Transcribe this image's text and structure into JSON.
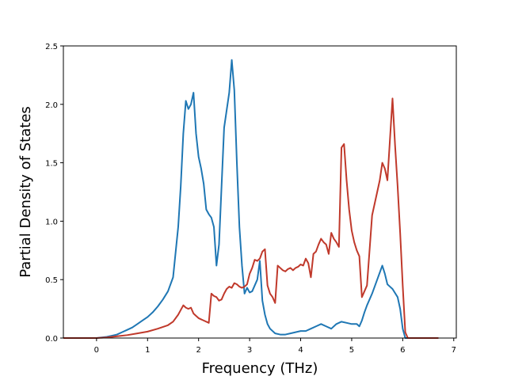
{
  "chart_data": {
    "type": "line",
    "title": "",
    "xlabel": "Frequency (THz)",
    "ylabel": "Partial Density of States",
    "xlim": [
      -0.65,
      7.05
    ],
    "ylim": [
      0,
      2.5
    ],
    "xticks": [
      0,
      1,
      2,
      3,
      4,
      5,
      6,
      7
    ],
    "yticks": [
      0.0,
      0.5,
      1.0,
      1.5,
      2.0,
      2.5
    ],
    "xtick_labels": [
      "0",
      "1",
      "2",
      "3",
      "4",
      "5",
      "6",
      "7"
    ],
    "ytick_labels": [
      "0.0",
      "0.5",
      "1.0",
      "1.5",
      "2.0",
      "2.5"
    ],
    "grid": false,
    "legend": "none",
    "series": [
      {
        "color": "#1f77b4",
        "x": [
          -0.65,
          0.0,
          0.1,
          0.2,
          0.3,
          0.4,
          0.5,
          0.6,
          0.7,
          0.8,
          0.9,
          1.0,
          1.1,
          1.2,
          1.3,
          1.4,
          1.5,
          1.6,
          1.65,
          1.7,
          1.75,
          1.8,
          1.85,
          1.9,
          1.95,
          2.0,
          2.05,
          2.1,
          2.15,
          2.2,
          2.25,
          2.3,
          2.35,
          2.4,
          2.45,
          2.5,
          2.55,
          2.6,
          2.65,
          2.7,
          2.75,
          2.8,
          2.85,
          2.9,
          2.95,
          3.0,
          3.05,
          3.1,
          3.15,
          3.2,
          3.25,
          3.3,
          3.35,
          3.4,
          3.5,
          3.6,
          3.7,
          3.8,
          3.9,
          4.0,
          4.1,
          4.2,
          4.3,
          4.4,
          4.5,
          4.6,
          4.7,
          4.8,
          4.9,
          5.0,
          5.1,
          5.15,
          5.2,
          5.25,
          5.3,
          5.4,
          5.5,
          5.6,
          5.65,
          5.7,
          5.75,
          5.8,
          5.9,
          5.95,
          6.0,
          6.05,
          6.1,
          6.2,
          6.7
        ],
        "y": [
          0.0,
          0.0,
          0.005,
          0.01,
          0.02,
          0.03,
          0.05,
          0.07,
          0.09,
          0.12,
          0.15,
          0.18,
          0.22,
          0.27,
          0.33,
          0.4,
          0.52,
          0.95,
          1.3,
          1.75,
          2.03,
          1.96,
          2.0,
          2.1,
          1.75,
          1.55,
          1.45,
          1.32,
          1.1,
          1.06,
          1.03,
          0.95,
          0.62,
          0.8,
          1.3,
          1.8,
          1.95,
          2.1,
          2.38,
          2.12,
          1.5,
          0.95,
          0.62,
          0.38,
          0.43,
          0.39,
          0.4,
          0.45,
          0.5,
          0.66,
          0.32,
          0.2,
          0.12,
          0.08,
          0.04,
          0.03,
          0.03,
          0.04,
          0.05,
          0.06,
          0.06,
          0.08,
          0.1,
          0.12,
          0.1,
          0.08,
          0.12,
          0.14,
          0.13,
          0.12,
          0.12,
          0.1,
          0.15,
          0.22,
          0.28,
          0.38,
          0.5,
          0.62,
          0.55,
          0.46,
          0.44,
          0.42,
          0.35,
          0.25,
          0.08,
          0.0,
          0.0,
          0.0,
          0.0
        ]
      },
      {
        "color": "#c0392b",
        "x": [
          -0.65,
          0.0,
          0.2,
          0.4,
          0.6,
          0.8,
          1.0,
          1.2,
          1.4,
          1.5,
          1.6,
          1.65,
          1.7,
          1.75,
          1.8,
          1.85,
          1.9,
          1.95,
          2.0,
          2.1,
          2.2,
          2.25,
          2.3,
          2.35,
          2.4,
          2.45,
          2.5,
          2.55,
          2.6,
          2.65,
          2.7,
          2.75,
          2.8,
          2.85,
          2.9,
          2.95,
          3.0,
          3.05,
          3.1,
          3.15,
          3.2,
          3.25,
          3.3,
          3.35,
          3.4,
          3.45,
          3.5,
          3.55,
          3.6,
          3.65,
          3.7,
          3.75,
          3.8,
          3.85,
          3.9,
          3.95,
          4.0,
          4.05,
          4.1,
          4.15,
          4.2,
          4.25,
          4.3,
          4.35,
          4.4,
          4.45,
          4.5,
          4.55,
          4.6,
          4.65,
          4.7,
          4.75,
          4.8,
          4.85,
          4.9,
          4.95,
          5.0,
          5.05,
          5.1,
          5.15,
          5.2,
          5.25,
          5.3,
          5.35,
          5.4,
          5.45,
          5.5,
          5.55,
          5.6,
          5.65,
          5.7,
          5.75,
          5.8,
          5.85,
          5.9,
          5.95,
          6.0,
          6.05,
          6.1,
          6.7
        ],
        "y": [
          0.0,
          0.0,
          0.005,
          0.015,
          0.025,
          0.04,
          0.055,
          0.08,
          0.11,
          0.14,
          0.2,
          0.24,
          0.28,
          0.26,
          0.25,
          0.26,
          0.21,
          0.19,
          0.17,
          0.15,
          0.13,
          0.38,
          0.36,
          0.35,
          0.32,
          0.33,
          0.38,
          0.42,
          0.44,
          0.43,
          0.47,
          0.46,
          0.44,
          0.43,
          0.44,
          0.46,
          0.55,
          0.6,
          0.67,
          0.66,
          0.68,
          0.74,
          0.76,
          0.45,
          0.38,
          0.35,
          0.3,
          0.62,
          0.6,
          0.58,
          0.57,
          0.59,
          0.6,
          0.58,
          0.6,
          0.61,
          0.63,
          0.62,
          0.68,
          0.64,
          0.52,
          0.72,
          0.74,
          0.8,
          0.85,
          0.82,
          0.8,
          0.72,
          0.9,
          0.85,
          0.82,
          0.78,
          1.63,
          1.66,
          1.35,
          1.1,
          0.92,
          0.82,
          0.75,
          0.7,
          0.35,
          0.4,
          0.45,
          0.75,
          1.05,
          1.15,
          1.25,
          1.35,
          1.5,
          1.45,
          1.35,
          1.7,
          2.05,
          1.65,
          1.3,
          0.9,
          0.45,
          0.05,
          0.0,
          0.0
        ]
      }
    ]
  }
}
